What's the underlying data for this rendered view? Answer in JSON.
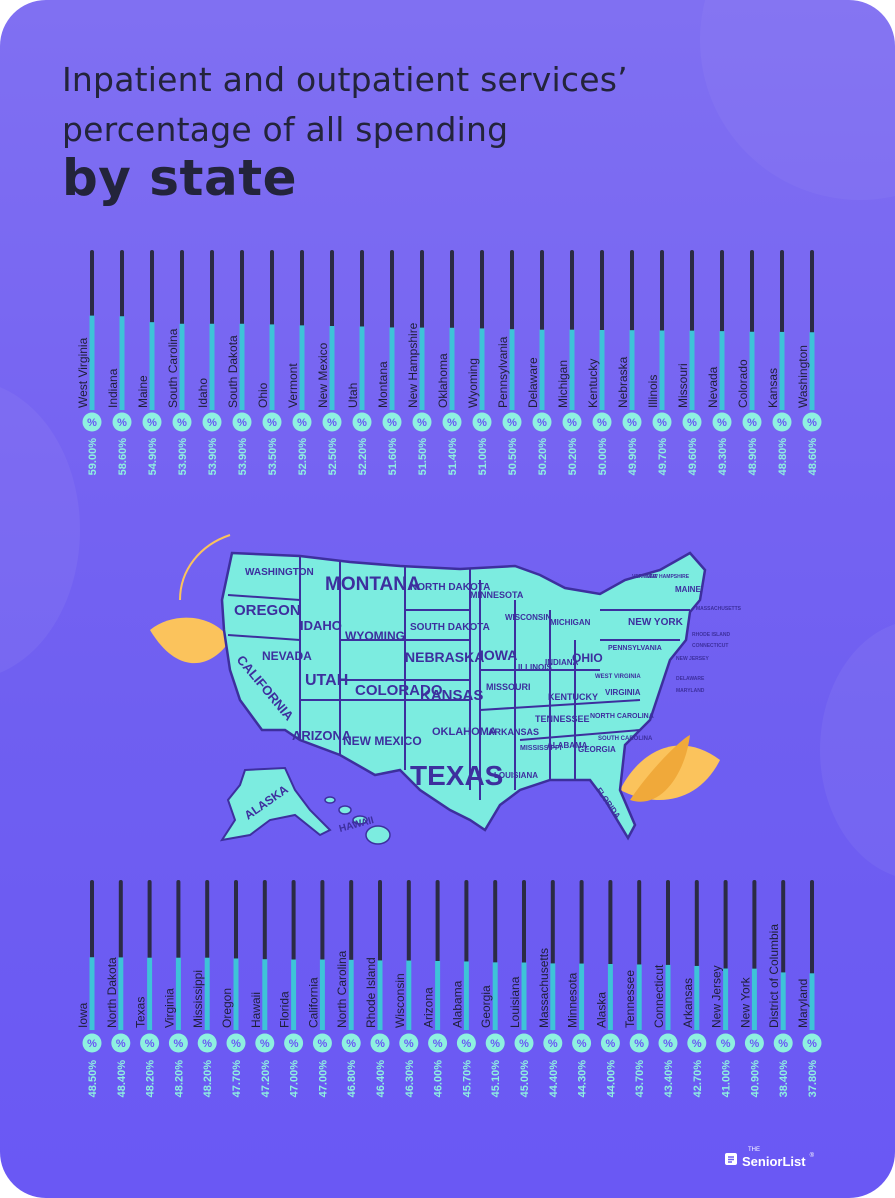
{
  "title": {
    "line1": "Inpatient and outpatient services’",
    "line2": "percentage of all spending",
    "line3": "by state"
  },
  "logo": {
    "small": "THE",
    "brand": "SeniorList",
    "trademark": "®"
  },
  "percent_symbol": "%",
  "colors": {
    "background": "#7563f2",
    "bar_fill": "#3ec3d8",
    "bar_track": "#2b2b45",
    "badge": "#8ef0e0",
    "map_fill": "#7cece0",
    "map_outline": "#3d2f9e",
    "leaf": "#fbc35c",
    "title": "#23243b"
  },
  "map_labels": [
    "WASHINGTON",
    "OREGON",
    "CALIFORNIA",
    "NEVADA",
    "IDAHO",
    "MONTANA",
    "WYOMING",
    "UTAH",
    "ARIZONA",
    "NEW MEXICO",
    "COLORADO",
    "NORTH DAKOTA",
    "SOUTH DAKOTA",
    "NEBRASKA",
    "KANSAS",
    "OKLAHOMA",
    "TEXAS",
    "MINNESOTA",
    "IOWA",
    "MISSOURI",
    "ARKANSAS",
    "LOUISIANA",
    "WISCONSIN",
    "ILLINOIS",
    "MICHIGAN",
    "INDIANA",
    "OHIO",
    "KENTUCKY",
    "TENNESSEE",
    "MISSISSIPPI",
    "ALABAMA",
    "GEORGIA",
    "FLORIDA",
    "SOUTH CAROLINA",
    "NORTH CAROLINA",
    "VIRGINIA",
    "WEST VIRGINIA",
    "PENNSYLVANIA",
    "NEW YORK",
    "MAINE",
    "VERMONT",
    "NEW HAMPSHIRE",
    "MASSACHUSETTS",
    "RHODE ISLAND",
    "CONNECTICUT",
    "NEW JERSEY",
    "DELAWARE",
    "MARYLAND",
    "ALASKA",
    "HAWAII"
  ],
  "chart_data": [
    {
      "type": "bar",
      "orientation": "vertical",
      "categories": [
        "West Virginia",
        "Indiana",
        "Maine",
        "South Carolina",
        "Idaho",
        "South Dakota",
        "Ohio",
        "Vermont",
        "New Mexico",
        "Utah",
        "Montana",
        "New Hampshire",
        "Oklahoma",
        "Wyoming",
        "Pennsylvania",
        "Delaware",
        "Michigan",
        "Kentucky",
        "Nebraska",
        "Illinois",
        "Missouri",
        "Nevada",
        "Colorado",
        "Kansas",
        "Washington"
      ],
      "values": [
        59.0,
        58.6,
        54.9,
        53.9,
        53.9,
        53.9,
        53.5,
        52.9,
        52.5,
        52.2,
        51.6,
        51.5,
        51.4,
        51.0,
        50.5,
        50.2,
        50.2,
        50.0,
        49.9,
        49.7,
        49.6,
        49.3,
        48.9,
        48.8,
        48.6
      ],
      "value_labels": [
        "59.00%",
        "58.60%",
        "54.90%",
        "53.90%",
        "53.90%",
        "53.90%",
        "53.50%",
        "52.90%",
        "52.50%",
        "52.20%",
        "51.60%",
        "51.50%",
        "51.40%",
        "51.00%",
        "50.50%",
        "50.20%",
        "50.20%",
        "50.00%",
        "49.90%",
        "49.70%",
        "49.60%",
        "49.30%",
        "48.90%",
        "48.80%",
        "48.60%"
      ],
      "unit": "%",
      "ylim": [
        0,
        100
      ]
    },
    {
      "type": "bar",
      "orientation": "vertical",
      "categories": [
        "Iowa",
        "North Dakota",
        "Texas",
        "Virginia",
        "Mississippi",
        "Oregon",
        "Hawaii",
        "Florida",
        "California",
        "North Carolina",
        "Rhode Island",
        "Wisconsin",
        "Arizona",
        "Alabama",
        "Georgia",
        "Louisiana",
        "Massachusetts",
        "Minnesota",
        "Alaska",
        "Tennessee",
        "Connecticut",
        "Arkansas",
        "New Jersey",
        "New York",
        "District of Columbia",
        "Maryland"
      ],
      "values": [
        48.5,
        48.4,
        48.2,
        48.2,
        48.2,
        47.7,
        47.2,
        47.0,
        47.0,
        46.8,
        46.4,
        46.3,
        46.0,
        45.7,
        45.1,
        45.0,
        44.4,
        44.3,
        44.0,
        43.7,
        43.4,
        42.7,
        41.0,
        40.9,
        38.4,
        37.8
      ],
      "value_labels": [
        "48.50%",
        "48.40%",
        "48.20%",
        "48.20%",
        "48.20%",
        "47.70%",
        "47.20%",
        "47.00%",
        "47.00%",
        "46.80%",
        "46.40%",
        "46.30%",
        "46.00%",
        "45.70%",
        "45.10%",
        "45.00%",
        "44.40%",
        "44.30%",
        "44.00%",
        "43.70%",
        "43.40%",
        "42.70%",
        "41.00%",
        "40.90%",
        "38.40%",
        "37.80%"
      ],
      "unit": "%",
      "ylim": [
        0,
        100
      ]
    }
  ]
}
